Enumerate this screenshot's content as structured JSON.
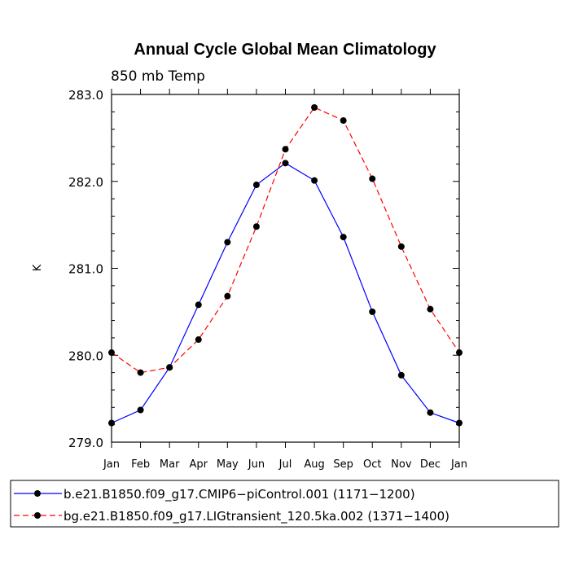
{
  "chart_data": {
    "type": "line",
    "title": "Annual Cycle Global Mean Climatology",
    "subtitle": "850 mb Temp",
    "ylabel": "K",
    "xlabel": "",
    "categories": [
      "Jan",
      "Feb",
      "Mar",
      "Apr",
      "May",
      "Jun",
      "Jul",
      "Aug",
      "Sep",
      "Oct",
      "Nov",
      "Dec",
      "Jan"
    ],
    "ylim": [
      279.0,
      283.0
    ],
    "yticks": [
      "279.0",
      "280.0",
      "281.0",
      "282.0",
      "283.0"
    ],
    "series": [
      {
        "name": "b.e21.B1850.f09_g17.CMIP6−piControl.001 (1171−1200)",
        "values": [
          279.22,
          279.37,
          279.86,
          280.58,
          281.3,
          281.96,
          282.21,
          282.01,
          281.36,
          280.5,
          279.77,
          279.34,
          279.22
        ],
        "color": "#0000ff",
        "dash": "solid"
      },
      {
        "name": "bg.e21.B1850.f09_g17.LIGtransient_120.5ka.002 (1371−1400)",
        "values": [
          280.03,
          279.8,
          279.86,
          280.18,
          280.68,
          281.48,
          282.37,
          282.85,
          282.7,
          282.03,
          281.25,
          280.53,
          280.03
        ],
        "color": "#ff0000",
        "dash": "dashed"
      }
    ],
    "grid": false,
    "legend": "bottom"
  }
}
